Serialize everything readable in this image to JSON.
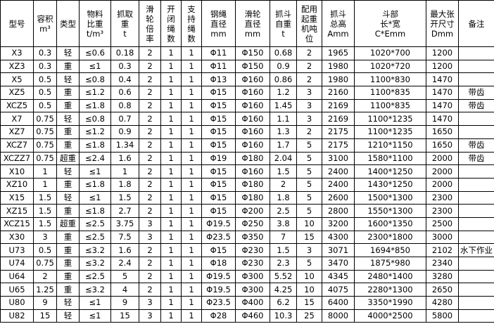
{
  "table": {
    "header": [
      [
        "型号"
      ],
      [
        "容积",
        "m³"
      ],
      [
        "类型"
      ],
      [
        "物料",
        "比重",
        "t/m³"
      ],
      [
        "抓取",
        "重",
        "t"
      ],
      [
        "滑",
        "轮",
        "倍",
        "率"
      ],
      [
        "开",
        "闭",
        "绳",
        "数"
      ],
      [
        "支",
        "持",
        "绳",
        "数"
      ],
      [
        "钢绳",
        "直径",
        "mm"
      ],
      [
        "滑轮",
        "直径",
        "mm"
      ],
      [
        "抓斗",
        "自重",
        "t"
      ],
      [
        "配用",
        "起重",
        "机吨",
        "位"
      ],
      [
        "抓斗",
        "总高",
        "Amm"
      ],
      [
        "斗部",
        "长*宽",
        "C*Emm"
      ],
      [
        "最大张",
        "开尺寸",
        "Dmm"
      ],
      [
        "备注"
      ]
    ],
    "rows": [
      [
        "X3",
        "0.3",
        "轻",
        "≤0.6",
        "0.18",
        "2",
        "1",
        "1",
        "Φ11",
        "Φ150",
        "0.68",
        "2",
        "1965",
        "1020*700",
        "1200"
      ],
      [
        "XZ3",
        "0.3",
        "重",
        "≤1",
        "0.3",
        "2",
        "1",
        "1",
        "Φ11",
        "Φ150",
        "0.9",
        "2",
        "1980",
        "1020*720",
        "1200"
      ],
      [
        "X5",
        "0.5",
        "轻",
        "≤0.8",
        "0.4",
        "2",
        "1",
        "1",
        "Φ13",
        "Φ160",
        "0.86",
        "2",
        "1980",
        "1100*830",
        "1470"
      ],
      [
        "XZ5",
        "0.5",
        "重",
        "≤1.2",
        "0.6",
        "2",
        "1",
        "1",
        "Φ15",
        "Φ160",
        "1.2",
        "3",
        "2160",
        "1100*835",
        "1470",
        "带齿"
      ],
      [
        "XCZ5",
        "0.5",
        "重",
        "≤1.8",
        "0.8",
        "2",
        "1",
        "1",
        "Φ15",
        "Φ160",
        "1.45",
        "3",
        "2169",
        "1100*835",
        "1470",
        "带齿"
      ],
      [
        "X7",
        "0.75",
        "轻",
        "≤0.8",
        "0.7",
        "2",
        "1",
        "1",
        "Φ15",
        "Φ160",
        "1.1",
        "3",
        "2169",
        "1100*1235",
        "1470"
      ],
      [
        "XZ7",
        "0.75",
        "重",
        "≤1.2",
        "0.9",
        "2",
        "1",
        "1",
        "Φ15",
        "Φ160",
        "1.3",
        "2",
        "2175",
        "1100*1235",
        "1650"
      ],
      [
        "XCZ7",
        "0.75",
        "重",
        "≤1.8",
        "1.34",
        "2",
        "1",
        "1",
        "Φ15",
        "Φ160",
        "1.7",
        "5",
        "2175",
        "1210*1150",
        "1650",
        "带齿"
      ],
      [
        "XCZZ7",
        "0.75",
        "超重",
        "≤2.4",
        "1.6",
        "2",
        "1",
        "1",
        "Φ19",
        "Φ180",
        "2.04",
        "5",
        "3100",
        "1580*1100",
        "2000",
        "带齿"
      ],
      [
        "X10",
        "1",
        "轻",
        "≤1",
        "1",
        "2",
        "1",
        "1",
        "Φ15",
        "Φ160",
        "1.5",
        "5",
        "2400",
        "1400*1250",
        "2000"
      ],
      [
        "XZ10",
        "1",
        "重",
        "≤1.8",
        "1.8",
        "2",
        "1",
        "1",
        "Φ15",
        "Φ180",
        "2",
        "5",
        "2400",
        "1430*1250",
        "2000"
      ],
      [
        "X15",
        "1.5",
        "轻",
        "≤1",
        "1.5",
        "2",
        "1",
        "1",
        "Φ15",
        "Φ180",
        "1.8",
        "5",
        "2600",
        "1500*1300",
        "2300"
      ],
      [
        "XZ15",
        "1.5",
        "重",
        "≤1.8",
        "2.7",
        "2",
        "1",
        "1",
        "Φ15",
        "Φ200",
        "2.5",
        "5",
        "2800",
        "1550*1300",
        "2300"
      ],
      [
        "XCZ15",
        "1.5",
        "超重",
        "≤2.5",
        "3.75",
        "3",
        "1",
        "1",
        "Φ19.5",
        "Φ250",
        "3.8",
        "10",
        "3200",
        "1600*1350",
        "2500"
      ],
      [
        "X30",
        "3",
        "重",
        "≤2.5",
        "7.5",
        "3",
        "1",
        "1",
        "Φ23.5",
        "Φ350",
        "7",
        "15",
        "4300",
        "2300*1800",
        "3000"
      ],
      [
        "U73",
        "0.5",
        "重",
        "≤3.2",
        "1.6",
        "2",
        "1",
        "1",
        "Φ15",
        "Φ230",
        "1.5",
        "3",
        "3071",
        "1694*850",
        "2102",
        "水下作业"
      ],
      [
        "U74",
        "0.75",
        "重",
        "≤3.2",
        "2.4",
        "2",
        "1",
        "1",
        "Φ18",
        "Φ230",
        "2.3",
        "5",
        "3470",
        "1875*980",
        "2340"
      ],
      [
        "U64",
        "2",
        "重",
        "≤2.5",
        "5",
        "2",
        "1",
        "1",
        "Φ19.5",
        "Φ300",
        "5.52",
        "10",
        "4345",
        "2480*1400",
        "3280"
      ],
      [
        "U65",
        "1.25",
        "重",
        "≤3.2",
        "4",
        "2",
        "1",
        "1",
        "Φ19.5",
        "Φ300",
        "4.25",
        "10",
        "4075",
        "2280*1300",
        "2650"
      ],
      [
        "U80",
        "9",
        "轻",
        "≤1",
        "9",
        "3",
        "1",
        "1",
        "Φ23.5",
        "Φ400",
        "6.2",
        "15",
        "6400",
        "3350*1990",
        "4280"
      ],
      [
        "U82",
        "15",
        "轻",
        "≤1",
        "15",
        "3",
        "1",
        "1",
        "Φ28",
        "Φ460",
        "10.3",
        "25",
        "8000",
        "4000*2500",
        "5800"
      ]
    ]
  }
}
